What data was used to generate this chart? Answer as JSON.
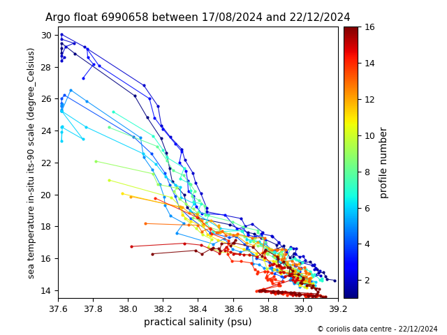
{
  "title": "Argo float 6990658 between 17/08/2024 and 22/12/2024",
  "xlabel": "practical salinity (psu)",
  "ylabel": "sea temperature in-situ its-90 scale (degree_Celsius)",
  "colorbar_label": "profile number",
  "xlim": [
    37.6,
    39.2
  ],
  "ylim": [
    13.5,
    30.5
  ],
  "xticks": [
    37.6,
    37.8,
    38.0,
    38.2,
    38.4,
    38.6,
    38.8,
    39.0,
    39.2
  ],
  "yticks": [
    14,
    16,
    18,
    20,
    22,
    24,
    26,
    28,
    30
  ],
  "colorbar_ticks": [
    2,
    4,
    6,
    8,
    10,
    12,
    14,
    16
  ],
  "n_profiles": 16,
  "copyright": "© coriolis data centre - 22/12/2024",
  "cmap": "jet",
  "vmin": 1,
  "vmax": 16,
  "marker_size": 3,
  "line_width": 0.8
}
